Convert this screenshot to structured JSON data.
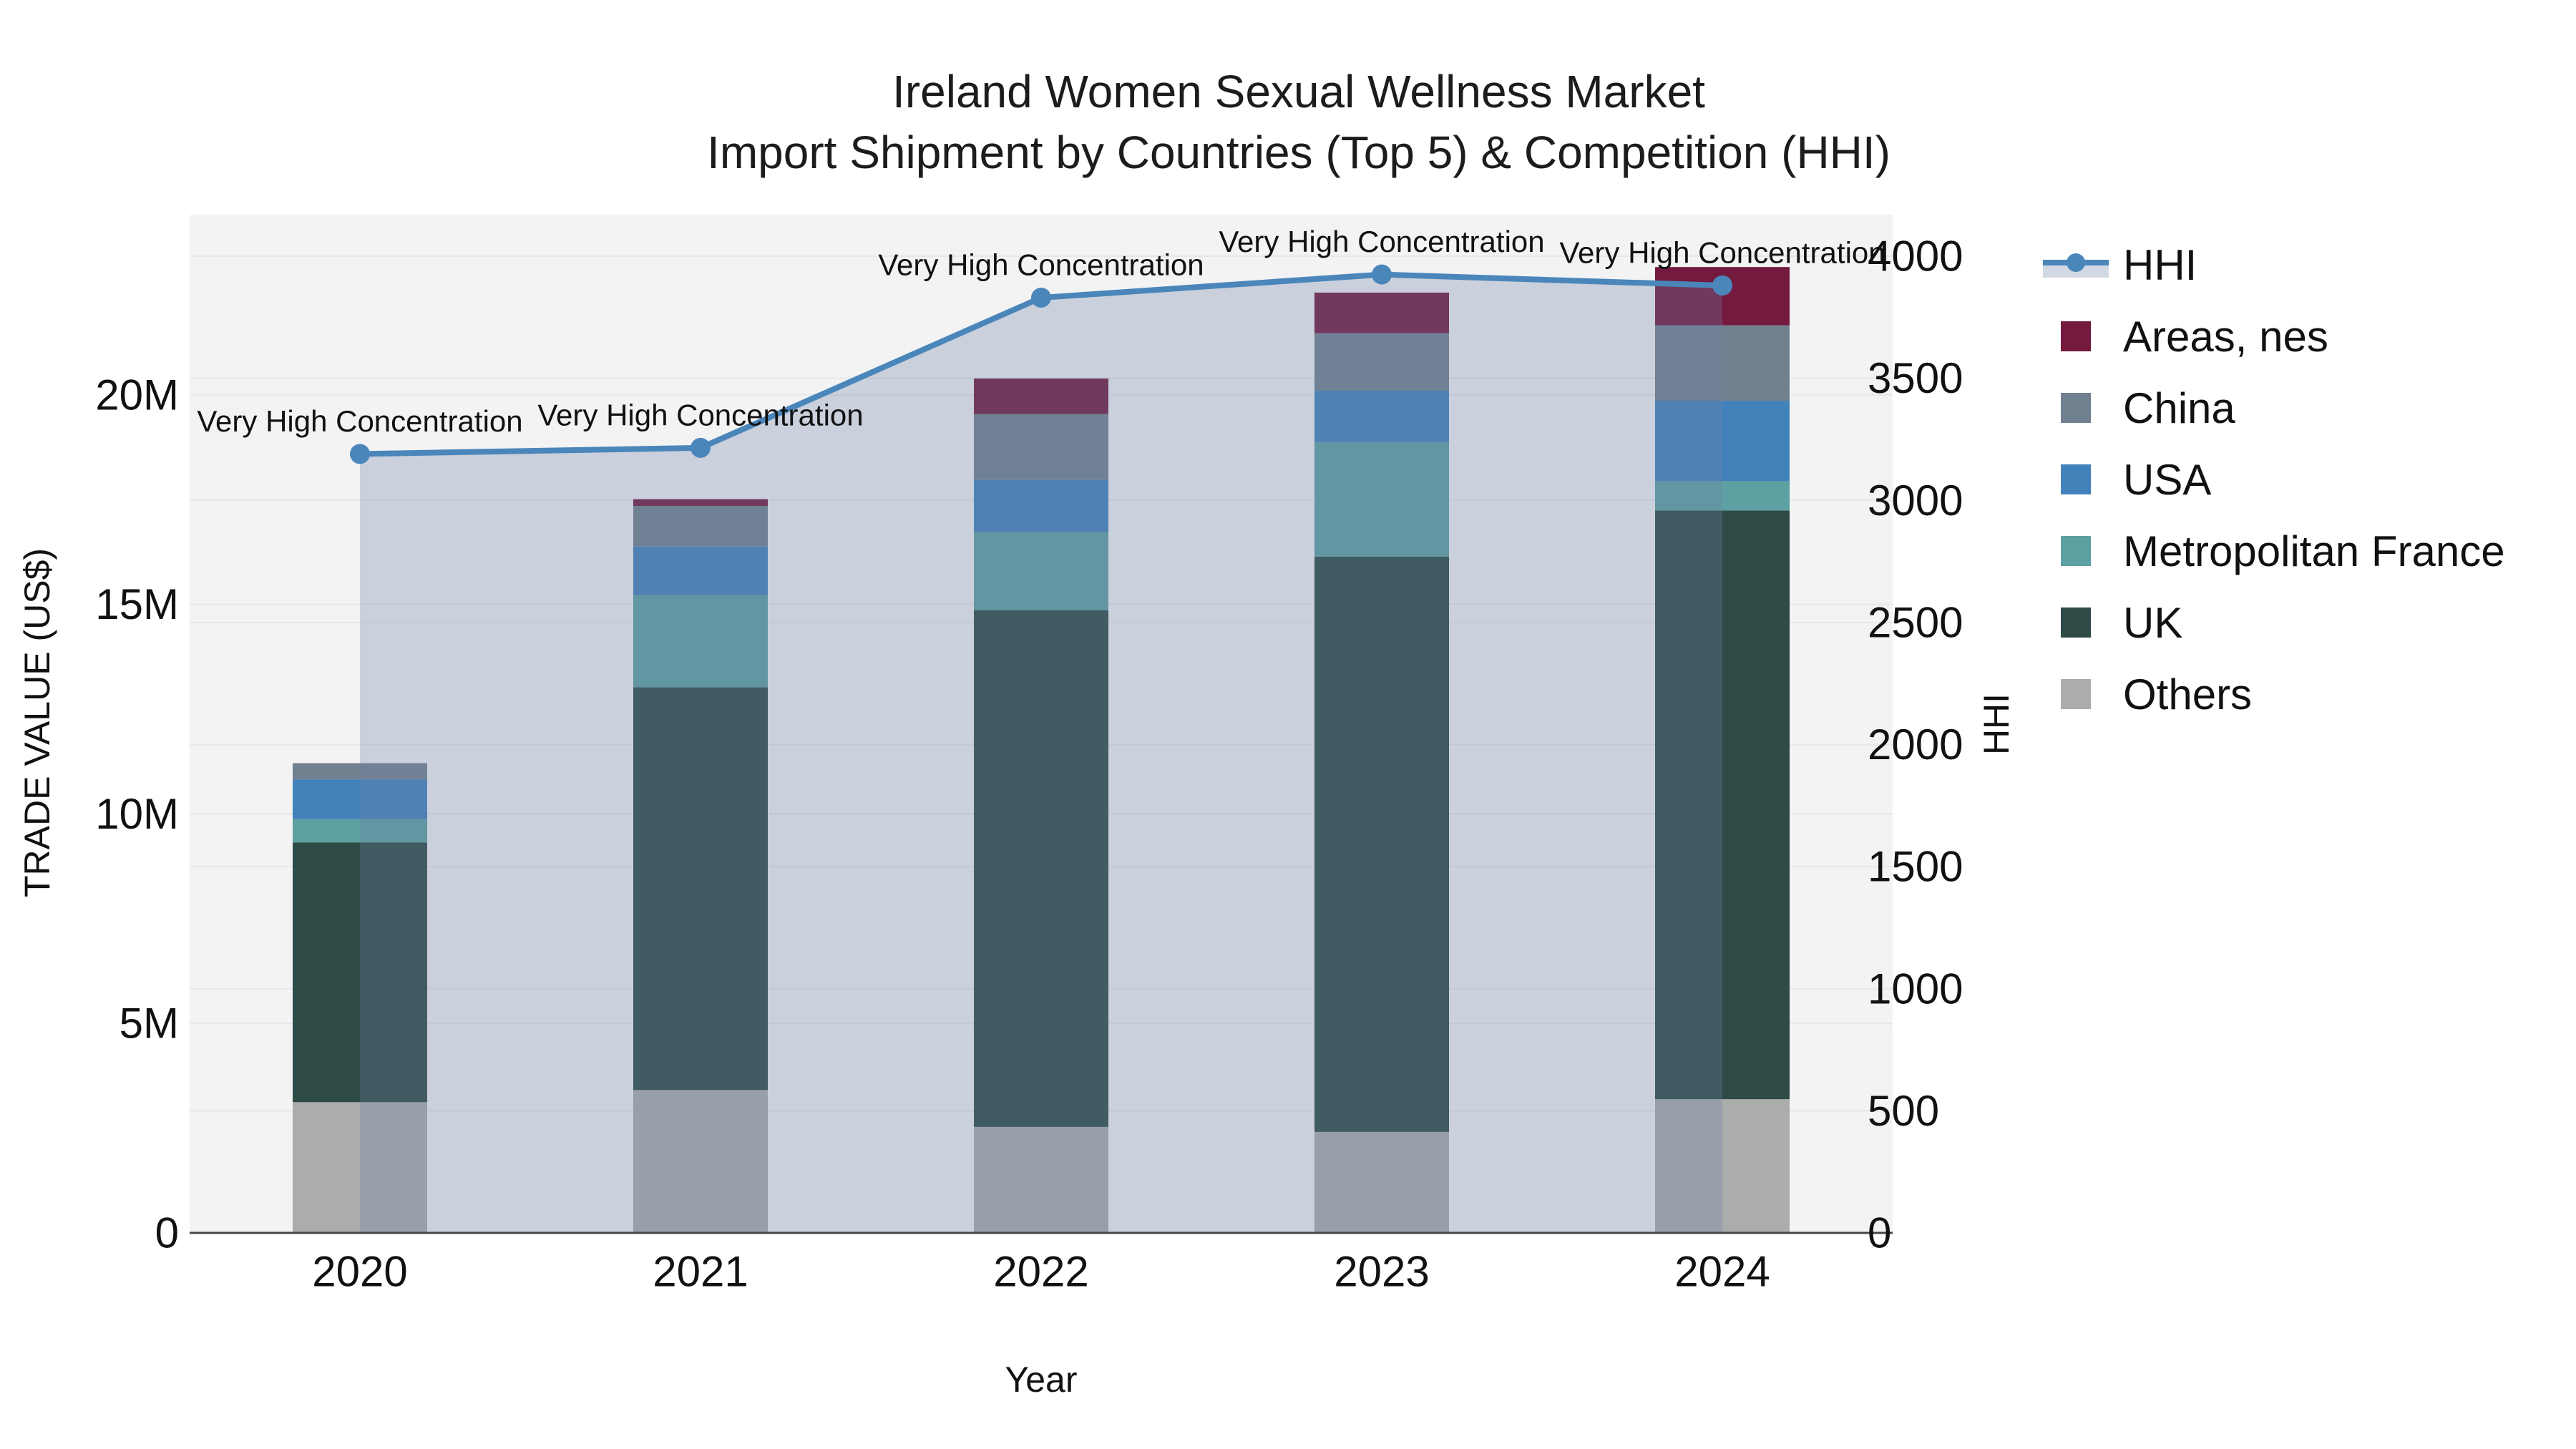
{
  "title": {
    "line1": "Ireland Women Sexual Wellness Market",
    "line2": "Import Shipment by Countries (Top 5) & Competition (HHI)"
  },
  "colors": {
    "plot_bg": "#f3f3f4",
    "gridline": "#e6e7e9",
    "axis_line": "#474747",
    "hhi_line": "#4a86ba",
    "hhi_fill": "rgba(110,130,165,0.30)",
    "areas_nes": "#731a3e",
    "china": "#71808f",
    "usa": "#4282ba",
    "france": "#5da0a1",
    "uk": "#2e4b47",
    "others": "#abadab"
  },
  "legend": {
    "items": [
      {
        "label": "HHI",
        "type": "line"
      },
      {
        "label": "Areas, nes",
        "type": "swatch",
        "color": "#731a3e"
      },
      {
        "label": "China",
        "type": "swatch",
        "color": "#71808f"
      },
      {
        "label": "USA",
        "type": "swatch",
        "color": "#4282ba"
      },
      {
        "label": "Metropolitan France",
        "type": "swatch",
        "color": "#5da0a1"
      },
      {
        "label": "UK",
        "type": "swatch",
        "color": "#2e4b47"
      },
      {
        "label": "Others",
        "type": "swatch",
        "color": "#abadab"
      }
    ]
  },
  "chart_data": {
    "type": "bar",
    "subtype": "stacked-bars-with-line",
    "categories": [
      "2020",
      "2021",
      "2022",
      "2023",
      "2024"
    ],
    "series": [
      {
        "name": "Others",
        "color": "#abadab",
        "values": [
          3.12,
          3.41,
          2.53,
          2.41,
          3.19
        ]
      },
      {
        "name": "UK",
        "color": "#2e4b47",
        "values": [
          6.2,
          9.61,
          12.33,
          13.73,
          14.05
        ]
      },
      {
        "name": "Metropolitan France",
        "color": "#5da0a1",
        "values": [
          0.56,
          2.2,
          1.86,
          2.73,
          0.7
        ]
      },
      {
        "name": "USA",
        "color": "#4282ba",
        "values": [
          0.94,
          1.16,
          1.25,
          1.23,
          1.92
        ]
      },
      {
        "name": "China",
        "color": "#71808f",
        "values": [
          0.39,
          0.97,
          1.57,
          1.37,
          1.8
        ]
      },
      {
        "name": "Areas, nes",
        "color": "#731a3e",
        "values": [
          0.0,
          0.16,
          0.85,
          0.97,
          1.39
        ]
      }
    ],
    "line_series": {
      "name": "HHI",
      "color": "#4a86ba",
      "fill": "rgba(110,130,165,0.30)",
      "values": [
        3190,
        3215,
        3830,
        3925,
        3880
      ],
      "point_annotations": [
        "Very High Concentration",
        "Very High Concentration",
        "Very High Concentration",
        "Very High Concentration",
        "Very High Concentration"
      ]
    },
    "title": "Ireland Women Sexual Wellness Market — Import Shipment by Countries (Top 5) & Competition (HHI)",
    "xlabel": "Year",
    "ylabel_left": "TRADE VALUE (US$)",
    "ylabel_right": "HHI",
    "left_axis": {
      "title": "TRADE VALUE (US$)",
      "unit": "US$ millions",
      "max": 24.3,
      "ticks": [
        {
          "value": 0,
          "label": "0"
        },
        {
          "value": 5,
          "label": "5M"
        },
        {
          "value": 10,
          "label": "10M"
        },
        {
          "value": 15,
          "label": "15M"
        },
        {
          "value": 20,
          "label": "20M"
        }
      ]
    },
    "right_axis": {
      "title": "HHI",
      "max": 4170,
      "ticks": [
        {
          "value": 0,
          "label": "0"
        },
        {
          "value": 500,
          "label": "500"
        },
        {
          "value": 1000,
          "label": "1000"
        },
        {
          "value": 1500,
          "label": "1500"
        },
        {
          "value": 2000,
          "label": "2000"
        },
        {
          "value": 2500,
          "label": "2500"
        },
        {
          "value": 3000,
          "label": "3000"
        },
        {
          "value": 3500,
          "label": "3500"
        },
        {
          "value": 4000,
          "label": "4000"
        }
      ]
    },
    "x_axis": {
      "title": "Year"
    },
    "legend_position": "right",
    "grid": true
  }
}
